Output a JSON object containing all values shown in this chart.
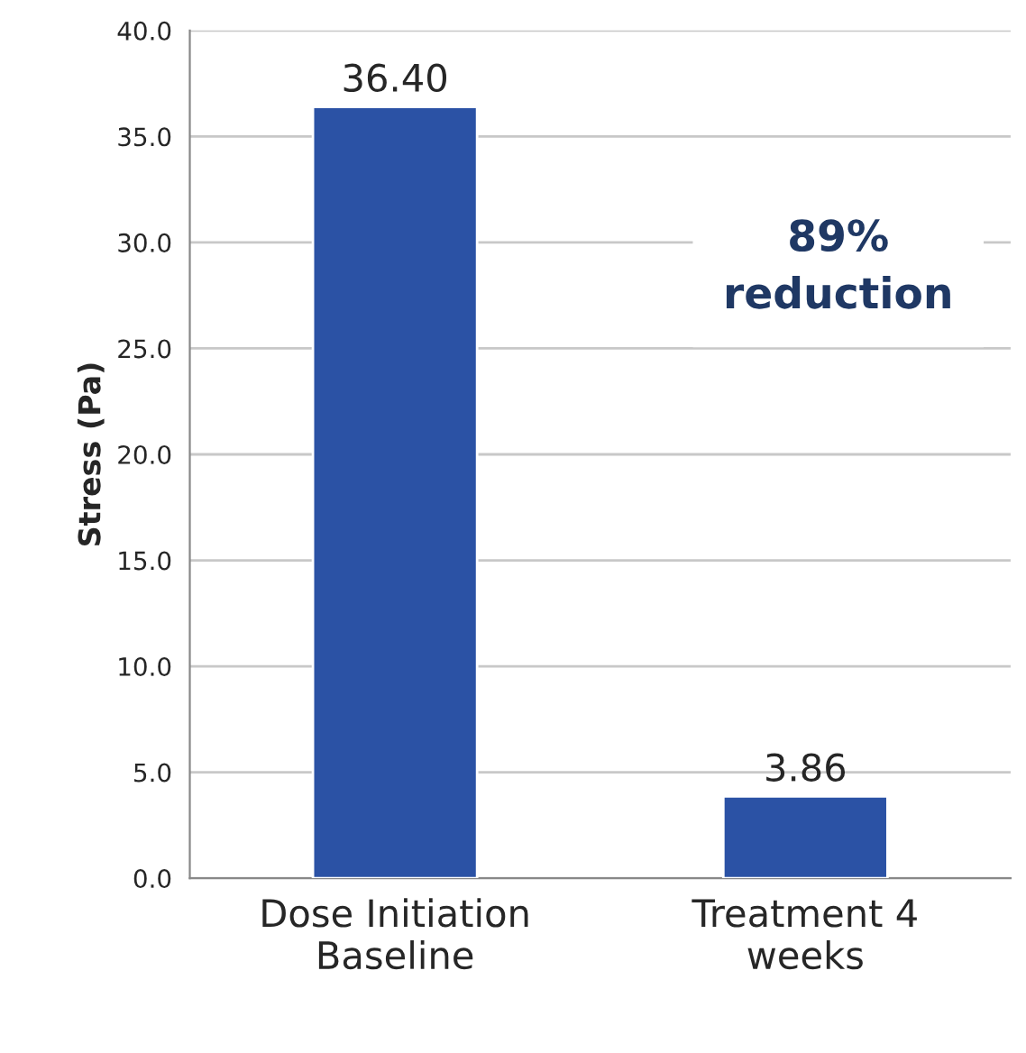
{
  "chart_data": {
    "type": "bar",
    "ylabel": "Stress (Pa)",
    "categories": [
      "Dose Initiation Baseline",
      "Treatment 4 weeks"
    ],
    "values": [
      36.4,
      3.86
    ],
    "value_labels": [
      "36.40",
      "3.86"
    ],
    "color": "#2b52a5",
    "ylim": [
      0,
      40
    ],
    "yticks": [
      {
        "value": 0,
        "label": "0.0"
      },
      {
        "value": 5,
        "label": "5.0"
      },
      {
        "value": 10,
        "label": "10.0"
      },
      {
        "value": 15,
        "label": "15.0"
      },
      {
        "value": 20,
        "label": "20.0"
      },
      {
        "value": 25,
        "label": "25.0"
      },
      {
        "value": 30,
        "label": "30.0"
      },
      {
        "value": 35,
        "label": "35.0"
      },
      {
        "value": 40,
        "label": "40.0"
      }
    ],
    "grid": "y",
    "annotations": [
      "89% reduction"
    ]
  }
}
